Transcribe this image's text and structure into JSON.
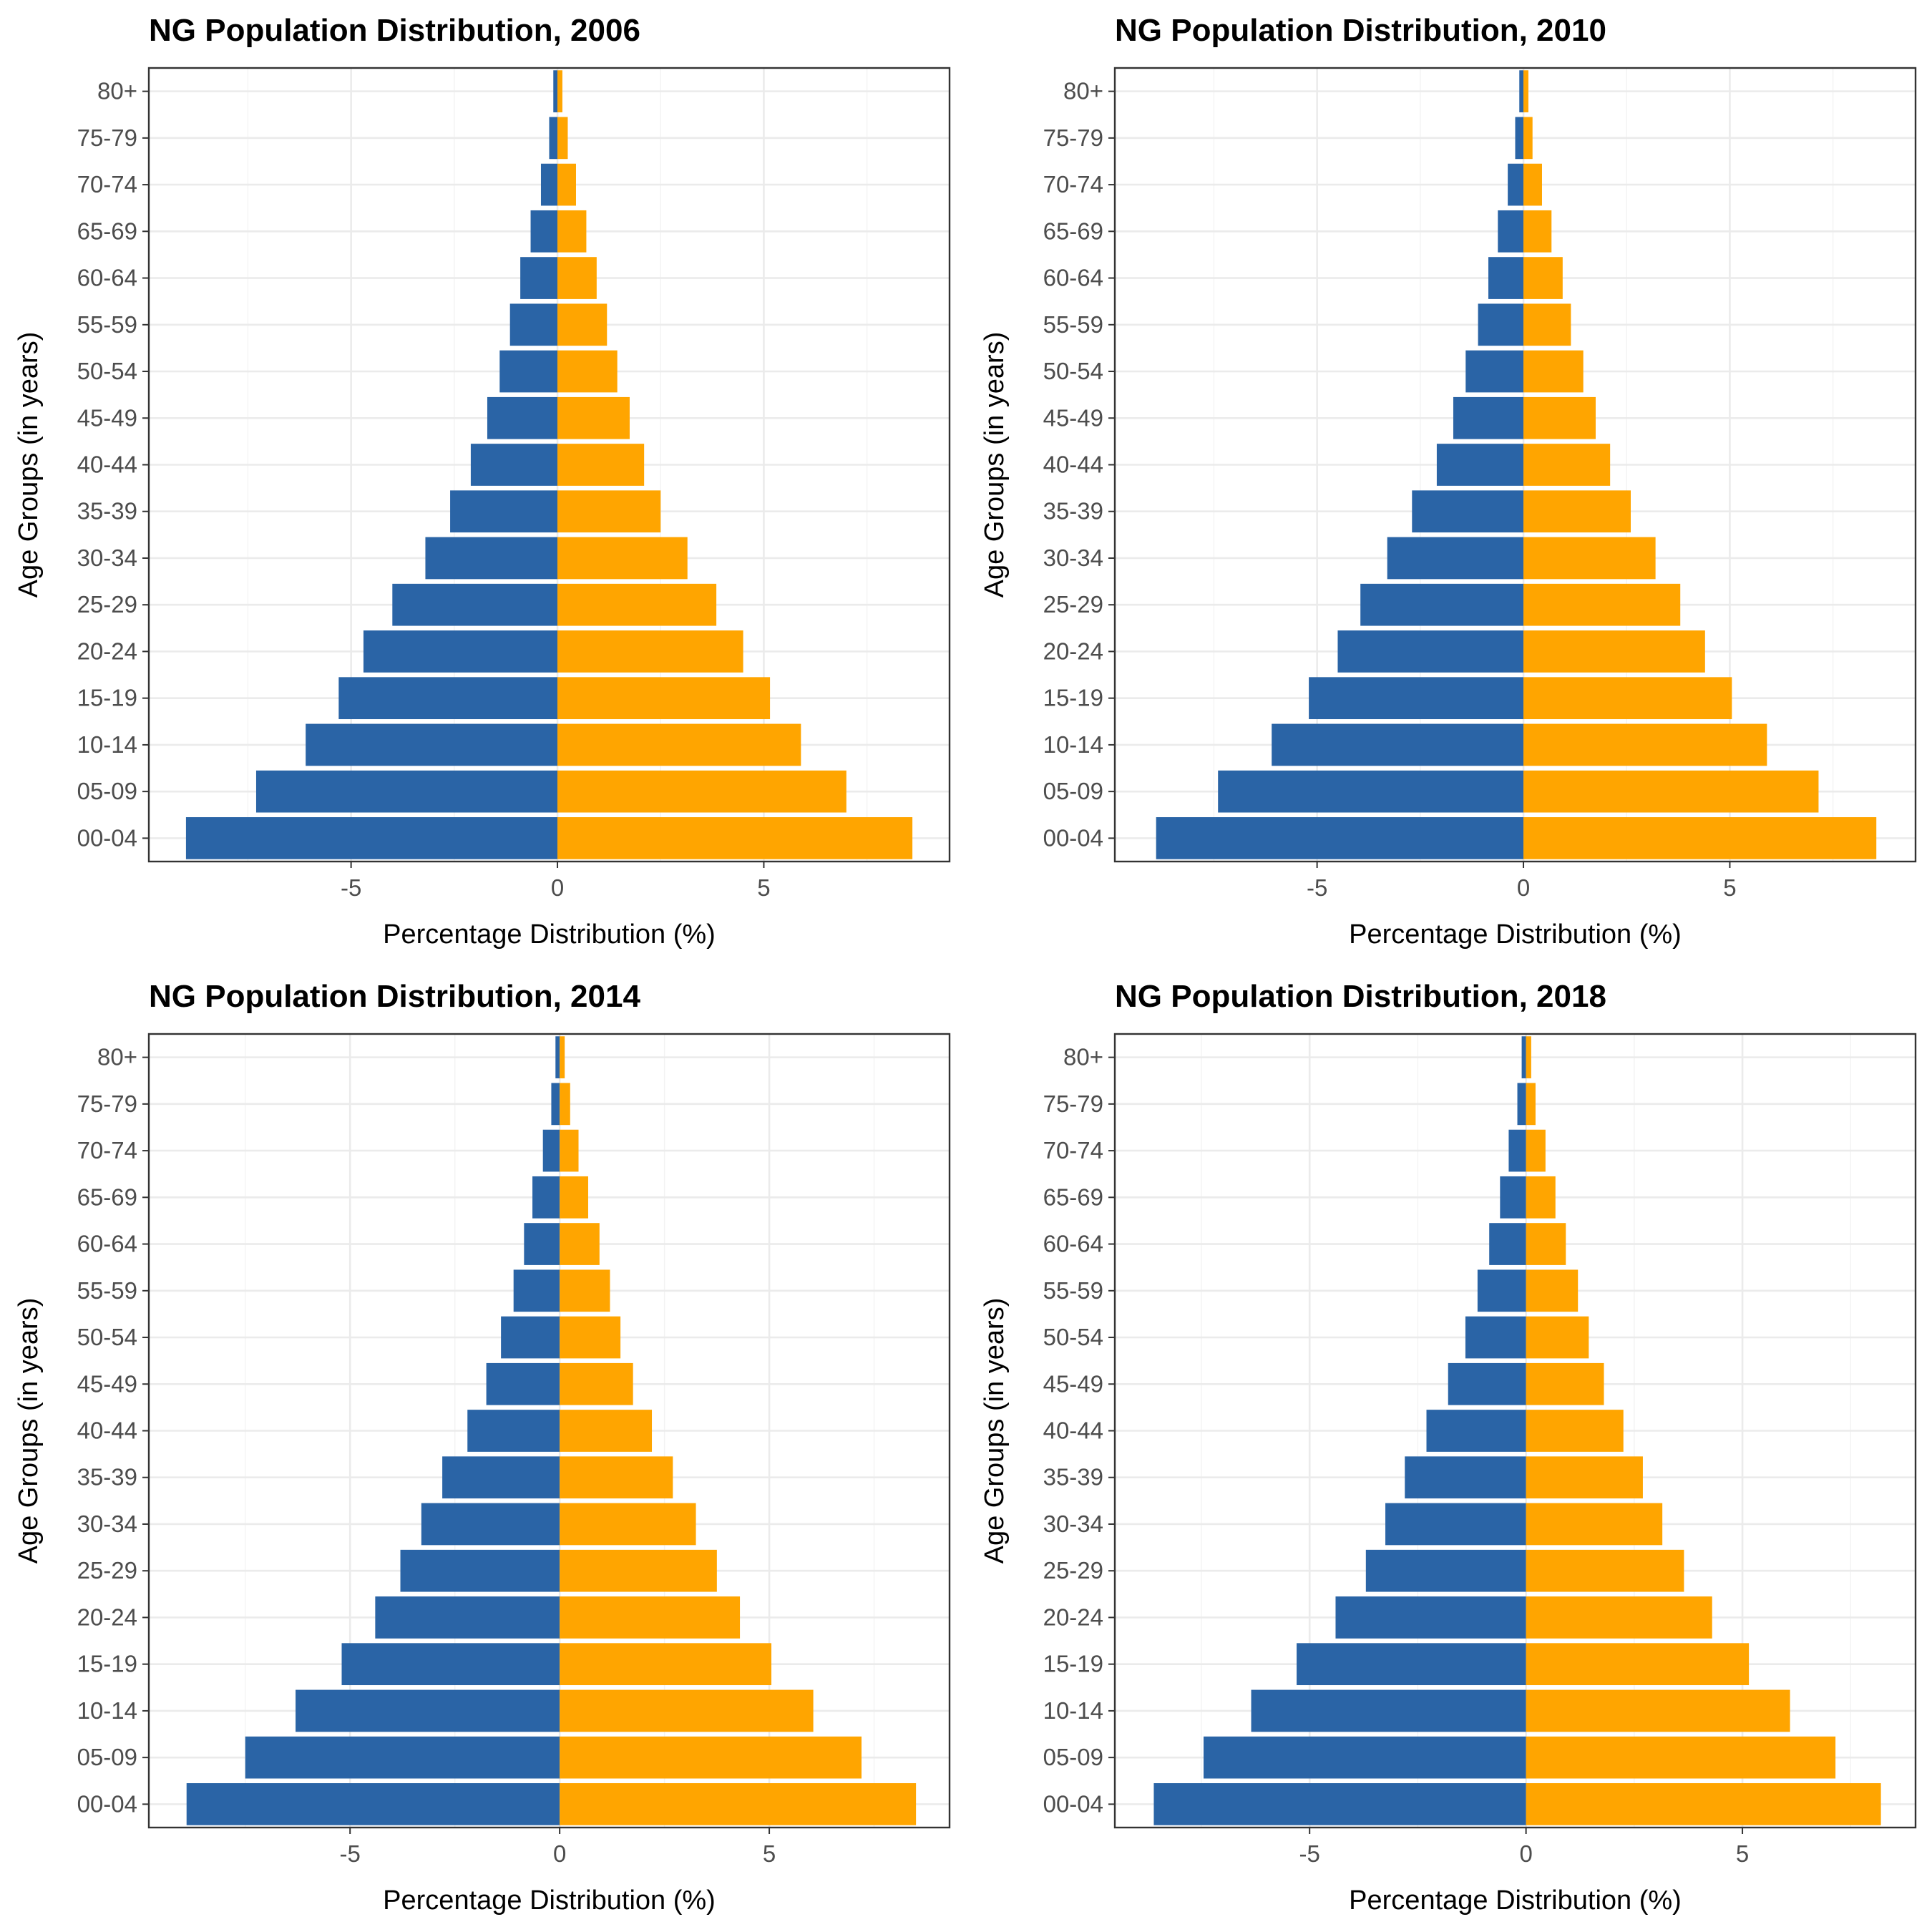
{
  "colors": {
    "male": "#2a64a6",
    "female": "#ffa500"
  },
  "age_groups": [
    "00-04",
    "05-09",
    "10-14",
    "15-19",
    "20-24",
    "25-29",
    "30-34",
    "35-39",
    "40-44",
    "45-49",
    "50-54",
    "55-59",
    "60-64",
    "65-69",
    "70-74",
    "75-79",
    "80+"
  ],
  "chart_data": [
    {
      "type": "bar",
      "orientation": "horizontal",
      "title": "NG Population Distribution, 2006",
      "xlabel": "Percentage Distribution (%)",
      "ylabel": "Age Groups (in years)",
      "xlim": [
        -9.9,
        9.5
      ],
      "xticks": [
        -5,
        0,
        5
      ],
      "xtick_labels": [
        "-5",
        "0",
        "5"
      ],
      "grid": true,
      "legend": "none",
      "categories": [
        "00-04",
        "05-09",
        "10-14",
        "15-19",
        "20-24",
        "25-29",
        "30-34",
        "35-39",
        "40-44",
        "45-49",
        "50-54",
        "55-59",
        "60-64",
        "65-69",
        "70-74",
        "75-79",
        "80+"
      ],
      "series": [
        {
          "values": [
            -9.0,
            -7.3,
            -6.1,
            -5.3,
            -4.7,
            -4.0,
            -3.2,
            -2.6,
            -2.1,
            -1.7,
            -1.4,
            -1.15,
            -0.9,
            -0.65,
            -0.4,
            -0.2,
            -0.1
          ]
        },
        {
          "values": [
            8.6,
            7.0,
            5.9,
            5.15,
            4.5,
            3.85,
            3.15,
            2.5,
            2.1,
            1.75,
            1.45,
            1.2,
            0.95,
            0.7,
            0.45,
            0.25,
            0.12
          ]
        }
      ]
    },
    {
      "type": "bar",
      "orientation": "horizontal",
      "title": "NG Population Distribution, 2010",
      "xlabel": "Percentage Distribution (%)",
      "ylabel": "Age Groups (in years)",
      "xlim": [
        -9.9,
        9.5
      ],
      "xticks": [
        -5,
        0,
        5
      ],
      "xtick_labels": [
        "-5",
        "0",
        "5"
      ],
      "grid": true,
      "legend": "none",
      "categories": [
        "00-04",
        "05-09",
        "10-14",
        "15-19",
        "20-24",
        "25-29",
        "30-34",
        "35-39",
        "40-44",
        "45-49",
        "50-54",
        "55-59",
        "60-64",
        "65-69",
        "70-74",
        "75-79",
        "80+"
      ],
      "series": [
        {
          "values": [
            -8.9,
            -7.4,
            -6.1,
            -5.2,
            -4.5,
            -3.95,
            -3.3,
            -2.7,
            -2.1,
            -1.7,
            -1.4,
            -1.1,
            -0.85,
            -0.62,
            -0.38,
            -0.2,
            -0.1
          ]
        },
        {
          "values": [
            8.55,
            7.15,
            5.9,
            5.05,
            4.4,
            3.8,
            3.2,
            2.6,
            2.1,
            1.75,
            1.45,
            1.15,
            0.95,
            0.68,
            0.45,
            0.22,
            0.12
          ]
        }
      ]
    },
    {
      "type": "bar",
      "orientation": "horizontal",
      "title": "NG Population Distribution, 2014",
      "xlabel": "Percentage Distribution (%)",
      "ylabel": "Age Groups (in years)",
      "xlim": [
        -9.8,
        9.3
      ],
      "xticks": [
        -5,
        0,
        5
      ],
      "xtick_labels": [
        "-5",
        "0",
        "5"
      ],
      "grid": true,
      "legend": "none",
      "categories": [
        "00-04",
        "05-09",
        "10-14",
        "15-19",
        "20-24",
        "25-29",
        "30-34",
        "35-39",
        "40-44",
        "45-49",
        "50-54",
        "55-59",
        "60-64",
        "65-69",
        "70-74",
        "75-79",
        "80+"
      ],
      "series": [
        {
          "values": [
            -8.9,
            -7.5,
            -6.3,
            -5.2,
            -4.4,
            -3.8,
            -3.3,
            -2.8,
            -2.2,
            -1.75,
            -1.4,
            -1.1,
            -0.85,
            -0.65,
            -0.4,
            -0.2,
            -0.1
          ]
        },
        {
          "values": [
            8.5,
            7.2,
            6.05,
            5.05,
            4.3,
            3.75,
            3.25,
            2.7,
            2.2,
            1.75,
            1.45,
            1.2,
            0.95,
            0.68,
            0.45,
            0.25,
            0.12
          ]
        }
      ]
    },
    {
      "type": "bar",
      "orientation": "horizontal",
      "title": "NG Population Distribution, 2018",
      "xlabel": "Percentage Distribution (%)",
      "ylabel": "Age Groups (in years)",
      "xlim": [
        -9.5,
        9.0
      ],
      "xticks": [
        -5,
        0,
        5
      ],
      "xtick_labels": [
        "-5",
        "0",
        "5"
      ],
      "grid": true,
      "legend": "none",
      "categories": [
        "00-04",
        "05-09",
        "10-14",
        "15-19",
        "20-24",
        "25-29",
        "30-34",
        "35-39",
        "40-44",
        "45-49",
        "50-54",
        "55-59",
        "60-64",
        "65-69",
        "70-74",
        "75-79",
        "80+"
      ],
      "series": [
        {
          "values": [
            -8.6,
            -7.45,
            -6.35,
            -5.3,
            -4.4,
            -3.7,
            -3.25,
            -2.8,
            -2.3,
            -1.8,
            -1.4,
            -1.12,
            -0.85,
            -0.6,
            -0.4,
            -0.2,
            -0.1
          ]
        },
        {
          "values": [
            8.2,
            7.15,
            6.1,
            5.15,
            4.3,
            3.65,
            3.15,
            2.7,
            2.25,
            1.8,
            1.45,
            1.2,
            0.92,
            0.68,
            0.45,
            0.22,
            0.12
          ]
        }
      ]
    }
  ]
}
